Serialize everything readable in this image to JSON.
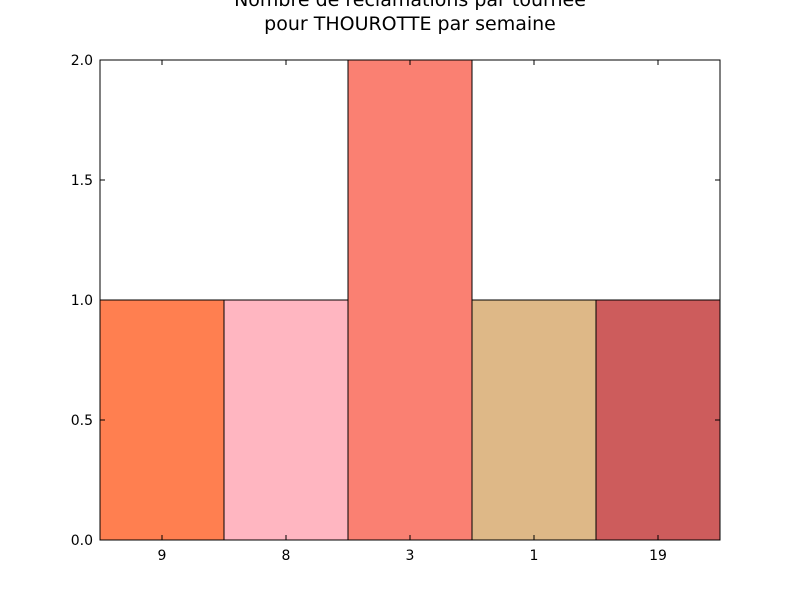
{
  "chart_data": {
    "type": "bar",
    "title_lines": [
      "Nombre de réclamations par tournée",
      "pour THOUROTTE par semaine"
    ],
    "xlabel": "",
    "ylabel": "",
    "categories": [
      "9",
      "8",
      "3",
      "1",
      "19"
    ],
    "values": [
      1,
      1,
      2,
      1,
      1
    ],
    "bar_colors": [
      "#FF7F50",
      "#FFB6C1",
      "#FA8072",
      "#DEB887",
      "#CD5C5C"
    ],
    "ylim": [
      0,
      2
    ],
    "yticks": [
      "0.0",
      "0.5",
      "1.0",
      "1.5",
      "2.0"
    ],
    "ytick_values": [
      0,
      0.5,
      1,
      1.5,
      2
    ],
    "grid": false,
    "legend": "none"
  }
}
